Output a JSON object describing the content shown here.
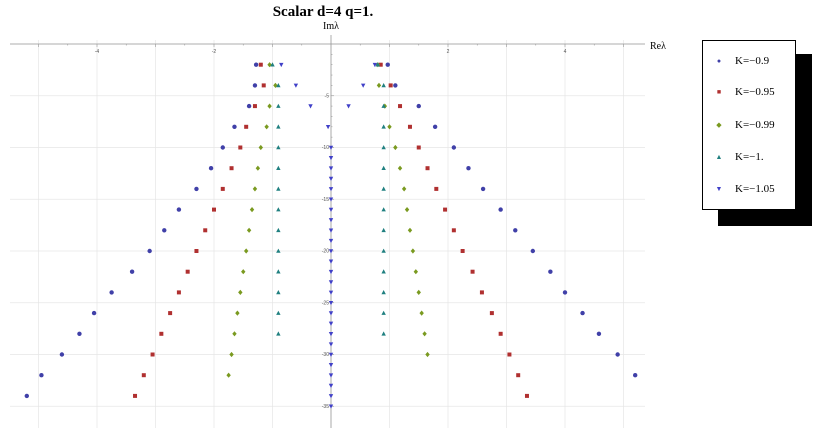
{
  "chart_data": {
    "type": "scatter",
    "title": "Scalar d=4 q=1.",
    "xlabel": "Reλ",
    "ylabel": "Imλ",
    "xlim": [
      -5.3,
      5.3
    ],
    "ylim": [
      -35.5,
      1.0
    ],
    "x_ticks": [
      -4,
      -2,
      2,
      4
    ],
    "y_ticks": [
      -5,
      -10,
      -15,
      -20,
      -25,
      -30,
      -35
    ],
    "grid": true,
    "legend_position": "right",
    "series": [
      {
        "name": "K=−0.9",
        "color": "#4040a8",
        "marker": "circle",
        "points": [
          [
            -1.28,
            -2
          ],
          [
            -1.3,
            -4
          ],
          [
            -1.4,
            -6
          ],
          [
            -1.65,
            -8
          ],
          [
            -1.85,
            -10
          ],
          [
            -2.05,
            -12
          ],
          [
            -2.3,
            -14
          ],
          [
            -2.6,
            -16
          ],
          [
            -2.85,
            -18
          ],
          [
            -3.1,
            -20
          ],
          [
            -3.4,
            -22
          ],
          [
            -3.75,
            -24
          ],
          [
            -4.05,
            -26
          ],
          [
            -4.3,
            -28
          ],
          [
            -4.6,
            -30
          ],
          [
            -4.95,
            -32
          ],
          [
            -5.2,
            -34
          ],
          [
            0.97,
            -2
          ],
          [
            1.1,
            -4
          ],
          [
            1.5,
            -6
          ],
          [
            1.78,
            -8
          ],
          [
            2.1,
            -10
          ],
          [
            2.35,
            -12
          ],
          [
            2.6,
            -14
          ],
          [
            2.9,
            -16
          ],
          [
            3.15,
            -18
          ],
          [
            3.45,
            -20
          ],
          [
            3.75,
            -22
          ],
          [
            4.0,
            -24
          ],
          [
            4.3,
            -26
          ],
          [
            4.58,
            -28
          ],
          [
            4.9,
            -30
          ],
          [
            5.2,
            -32
          ]
        ]
      },
      {
        "name": "K=−0.95",
        "color": "#b03030",
        "marker": "square",
        "points": [
          [
            -1.2,
            -2
          ],
          [
            -1.15,
            -4
          ],
          [
            -1.3,
            -6
          ],
          [
            -1.45,
            -8
          ],
          [
            -1.55,
            -10
          ],
          [
            -1.7,
            -12
          ],
          [
            -1.85,
            -14
          ],
          [
            -2.0,
            -16
          ],
          [
            -2.15,
            -18
          ],
          [
            -2.3,
            -20
          ],
          [
            -2.45,
            -22
          ],
          [
            -2.6,
            -24
          ],
          [
            -2.75,
            -26
          ],
          [
            -2.9,
            -28
          ],
          [
            -3.05,
            -30
          ],
          [
            -3.2,
            -32
          ],
          [
            -3.35,
            -34
          ],
          [
            0.85,
            -2
          ],
          [
            1.02,
            -4
          ],
          [
            1.18,
            -6
          ],
          [
            1.35,
            -8
          ],
          [
            1.5,
            -10
          ],
          [
            1.65,
            -12
          ],
          [
            1.8,
            -14
          ],
          [
            1.95,
            -16
          ],
          [
            2.1,
            -18
          ],
          [
            2.25,
            -20
          ],
          [
            2.42,
            -22
          ],
          [
            2.58,
            -24
          ],
          [
            2.75,
            -26
          ],
          [
            2.9,
            -28
          ],
          [
            3.05,
            -30
          ],
          [
            3.2,
            -32
          ],
          [
            3.35,
            -34
          ]
        ]
      },
      {
        "name": "K=−0.99",
        "color": "#7a9a20",
        "marker": "diamond",
        "points": [
          [
            -1.05,
            -2
          ],
          [
            -0.95,
            -4
          ],
          [
            -1.05,
            -6
          ],
          [
            -1.1,
            -8
          ],
          [
            -1.2,
            -10
          ],
          [
            -1.25,
            -12
          ],
          [
            -1.3,
            -14
          ],
          [
            -1.35,
            -16
          ],
          [
            -1.4,
            -18
          ],
          [
            -1.45,
            -20
          ],
          [
            -1.5,
            -22
          ],
          [
            -1.55,
            -24
          ],
          [
            -1.6,
            -26
          ],
          [
            -1.65,
            -28
          ],
          [
            -1.7,
            -30
          ],
          [
            -1.75,
            -32
          ],
          [
            0.8,
            -2
          ],
          [
            0.82,
            -4
          ],
          [
            0.92,
            -6
          ],
          [
            1.0,
            -8
          ],
          [
            1.1,
            -10
          ],
          [
            1.18,
            -12
          ],
          [
            1.25,
            -14
          ],
          [
            1.3,
            -16
          ],
          [
            1.35,
            -18
          ],
          [
            1.4,
            -20
          ],
          [
            1.45,
            -22
          ],
          [
            1.5,
            -24
          ],
          [
            1.55,
            -26
          ],
          [
            1.6,
            -28
          ],
          [
            1.65,
            -30
          ]
        ]
      },
      {
        "name": "K=−1.",
        "color": "#208080",
        "marker": "triangle-up",
        "points": [
          [
            -1.0,
            -2
          ],
          [
            -0.9,
            -4
          ],
          [
            -0.9,
            -6
          ],
          [
            -0.9,
            -8
          ],
          [
            -0.9,
            -10
          ],
          [
            -0.9,
            -12
          ],
          [
            -0.9,
            -14
          ],
          [
            -0.9,
            -16
          ],
          [
            -0.9,
            -18
          ],
          [
            -0.9,
            -20
          ],
          [
            -0.9,
            -22
          ],
          [
            -0.9,
            -24
          ],
          [
            -0.9,
            -26
          ],
          [
            -0.9,
            -28
          ],
          [
            0.8,
            -2
          ],
          [
            0.9,
            -4
          ],
          [
            0.9,
            -6
          ],
          [
            0.9,
            -8
          ],
          [
            0.9,
            -10
          ],
          [
            0.9,
            -12
          ],
          [
            0.9,
            -14
          ],
          [
            0.9,
            -16
          ],
          [
            0.9,
            -18
          ],
          [
            0.9,
            -20
          ],
          [
            0.9,
            -22
          ],
          [
            0.9,
            -24
          ],
          [
            0.9,
            -26
          ],
          [
            0.9,
            -28
          ]
        ]
      },
      {
        "name": "K=−1.05",
        "color": "#4040c8",
        "marker": "triangle-down",
        "points": [
          [
            -0.85,
            -2
          ],
          [
            -0.6,
            -4
          ],
          [
            -0.35,
            -6
          ],
          [
            -0.05,
            -8
          ],
          [
            0.0,
            -10
          ],
          [
            0.0,
            -11
          ],
          [
            0.0,
            -12
          ],
          [
            0.0,
            -13
          ],
          [
            0.0,
            -14
          ],
          [
            0.0,
            -15
          ],
          [
            0.0,
            -16
          ],
          [
            0.0,
            -17
          ],
          [
            0.0,
            -18
          ],
          [
            0.0,
            -19
          ],
          [
            0.0,
            -20
          ],
          [
            0.0,
            -21
          ],
          [
            0.0,
            -22
          ],
          [
            0.0,
            -23
          ],
          [
            0.0,
            -24
          ],
          [
            0.0,
            -25
          ],
          [
            0.0,
            -26
          ],
          [
            0.0,
            -27
          ],
          [
            0.0,
            -28
          ],
          [
            0.0,
            -29
          ],
          [
            0.0,
            -30
          ],
          [
            0.0,
            -31
          ],
          [
            0.0,
            -32
          ],
          [
            0.0,
            -33
          ],
          [
            0.0,
            -34
          ],
          [
            0.0,
            -35
          ],
          [
            0.75,
            -2
          ],
          [
            0.55,
            -4
          ],
          [
            0.3,
            -6
          ]
        ]
      }
    ]
  }
}
